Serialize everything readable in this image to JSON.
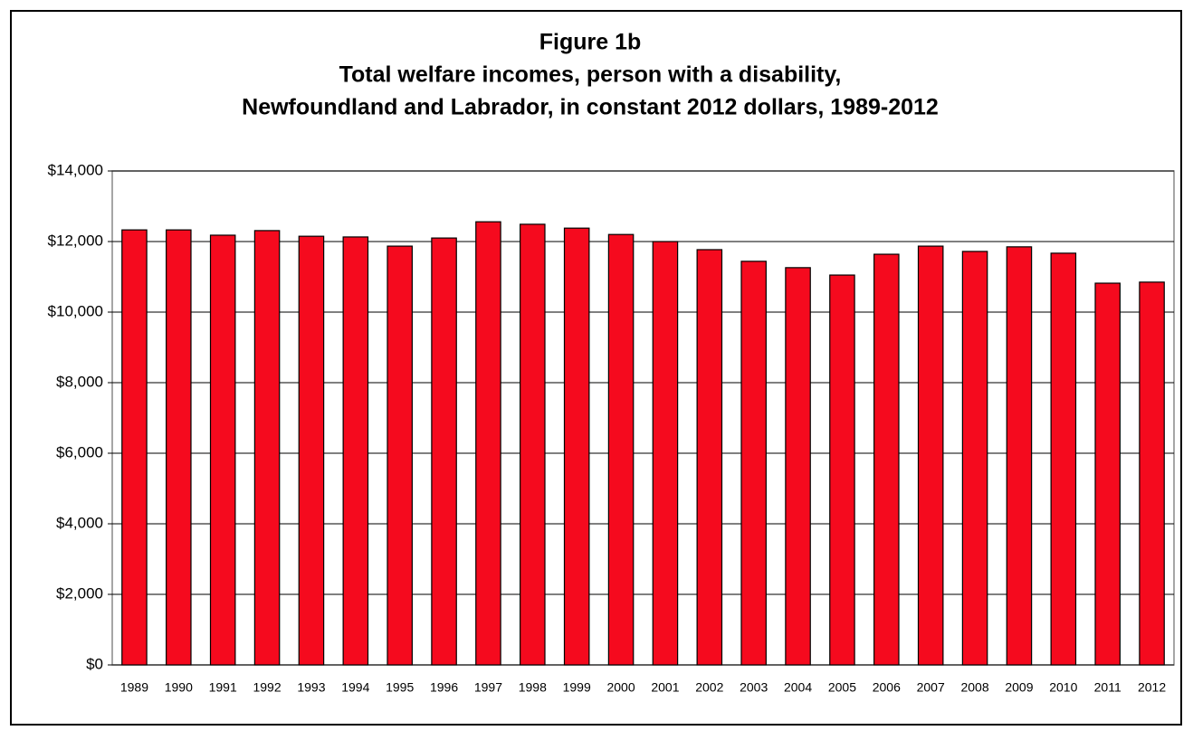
{
  "chart_data": {
    "type": "bar",
    "title": [
      "Figure 1b",
      "Total welfare incomes, person with a disability,",
      "Newfoundland and Labrador, in constant 2012 dollars, 1989-2012"
    ],
    "categories": [
      "1989",
      "1990",
      "1991",
      "1992",
      "1993",
      "1994",
      "1995",
      "1996",
      "1997",
      "1998",
      "1999",
      "2000",
      "2001",
      "2002",
      "2003",
      "2004",
      "2005",
      "2006",
      "2007",
      "2008",
      "2009",
      "2010",
      "2011",
      "2012"
    ],
    "values": [
      12330,
      12330,
      12180,
      12310,
      12150,
      12130,
      11870,
      12100,
      12560,
      12490,
      12380,
      12200,
      12000,
      11770,
      11440,
      11260,
      11050,
      11640,
      11870,
      11720,
      11850,
      11670,
      10820,
      10850
    ],
    "color": "#f50a1e",
    "ylim": [
      0,
      14000
    ],
    "yticks": [
      {
        "value": 0,
        "label": "$0"
      },
      {
        "value": 2000,
        "label": "$2,000"
      },
      {
        "value": 4000,
        "label": "$4,000"
      },
      {
        "value": 6000,
        "label": "$6,000"
      },
      {
        "value": 8000,
        "label": "$8,000"
      },
      {
        "value": 10000,
        "label": "$10,000"
      },
      {
        "value": 12000,
        "label": "$12,000"
      },
      {
        "value": 14000,
        "label": "$14,000"
      }
    ],
    "grid": true
  }
}
